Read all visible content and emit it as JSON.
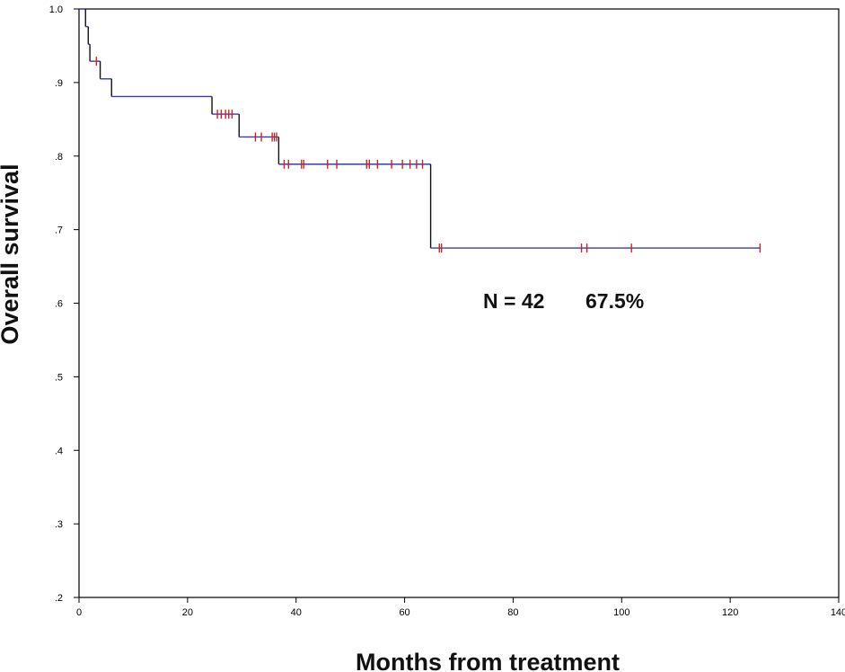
{
  "chart_data": {
    "type": "line",
    "title": "",
    "xlabel": "Months from treatment",
    "ylabel": "Overall survival",
    "xlim": [
      0,
      140
    ],
    "ylim": [
      0.2,
      1.0
    ],
    "x_ticks": [
      {
        "value": 0,
        "label": "0"
      },
      {
        "value": 20,
        "label": "20"
      },
      {
        "value": 40,
        "label": "40"
      },
      {
        "value": 60,
        "label": "60"
      },
      {
        "value": 80,
        "label": "80"
      },
      {
        "value": 100,
        "label": "100"
      },
      {
        "value": 120,
        "label": "120"
      },
      {
        "value": 140,
        "label": "140"
      }
    ],
    "y_ticks": [
      {
        "value": 1.0,
        "label": "1.0"
      },
      {
        "value": 0.9,
        "label": ".9"
      },
      {
        "value": 0.8,
        "label": ".8"
      },
      {
        "value": 0.7,
        "label": ".7"
      },
      {
        "value": 0.6,
        "label": ".6"
      },
      {
        "value": 0.5,
        "label": ".5"
      },
      {
        "value": 0.4,
        "label": ".4"
      },
      {
        "value": 0.3,
        "label": ".3"
      },
      {
        "value": 0.2,
        "label": ".2"
      }
    ],
    "grid": false,
    "legend": "none",
    "series": [
      {
        "step_curve": [
          {
            "x": 0.0,
            "y": 1.0
          },
          {
            "x": 1.2,
            "y": 0.976
          },
          {
            "x": 1.7,
            "y": 0.952
          },
          {
            "x": 2.0,
            "y": 0.929
          },
          {
            "x": 3.9,
            "y": 0.905
          },
          {
            "x": 6.0,
            "y": 0.881
          },
          {
            "x": 24.5,
            "y": 0.857
          },
          {
            "x": 29.5,
            "y": 0.826
          },
          {
            "x": 36.8,
            "y": 0.789
          },
          {
            "x": 64.8,
            "y": 0.675
          },
          {
            "x": 125.5,
            "y": 0.675
          }
        ],
        "censored": [
          {
            "x": 3.2,
            "y": 0.929
          },
          {
            "x": 25.5,
            "y": 0.857
          },
          {
            "x": 26.2,
            "y": 0.857
          },
          {
            "x": 27.0,
            "y": 0.857
          },
          {
            "x": 27.6,
            "y": 0.857
          },
          {
            "x": 28.2,
            "y": 0.857
          },
          {
            "x": 32.5,
            "y": 0.826
          },
          {
            "x": 33.6,
            "y": 0.826
          },
          {
            "x": 35.6,
            "y": 0.826
          },
          {
            "x": 36.0,
            "y": 0.826
          },
          {
            "x": 36.4,
            "y": 0.826
          },
          {
            "x": 37.8,
            "y": 0.789
          },
          {
            "x": 38.6,
            "y": 0.789
          },
          {
            "x": 41.0,
            "y": 0.789
          },
          {
            "x": 41.4,
            "y": 0.789
          },
          {
            "x": 45.8,
            "y": 0.789
          },
          {
            "x": 47.5,
            "y": 0.789
          },
          {
            "x": 53.0,
            "y": 0.789
          },
          {
            "x": 53.5,
            "y": 0.789
          },
          {
            "x": 55.0,
            "y": 0.789
          },
          {
            "x": 57.6,
            "y": 0.789
          },
          {
            "x": 59.6,
            "y": 0.789
          },
          {
            "x": 61.0,
            "y": 0.789
          },
          {
            "x": 62.2,
            "y": 0.789
          },
          {
            "x": 63.3,
            "y": 0.789
          },
          {
            "x": 66.4,
            "y": 0.675
          },
          {
            "x": 66.8,
            "y": 0.675
          },
          {
            "x": 92.6,
            "y": 0.675
          },
          {
            "x": 93.6,
            "y": 0.675
          },
          {
            "x": 101.8,
            "y": 0.675
          },
          {
            "x": 125.5,
            "y": 0.675
          }
        ]
      }
    ],
    "annotations": [
      {
        "text": "N = 42",
        "x": 75.8,
        "y": 0.596
      },
      {
        "text": "67.5%",
        "x": 92.6,
        "y": 0.596
      }
    ],
    "colors": {
      "axis": "#000000",
      "curve_horizontal": "#3a3aa8",
      "curve_vertical": "#111111",
      "censor_mark": "#d42020"
    }
  }
}
